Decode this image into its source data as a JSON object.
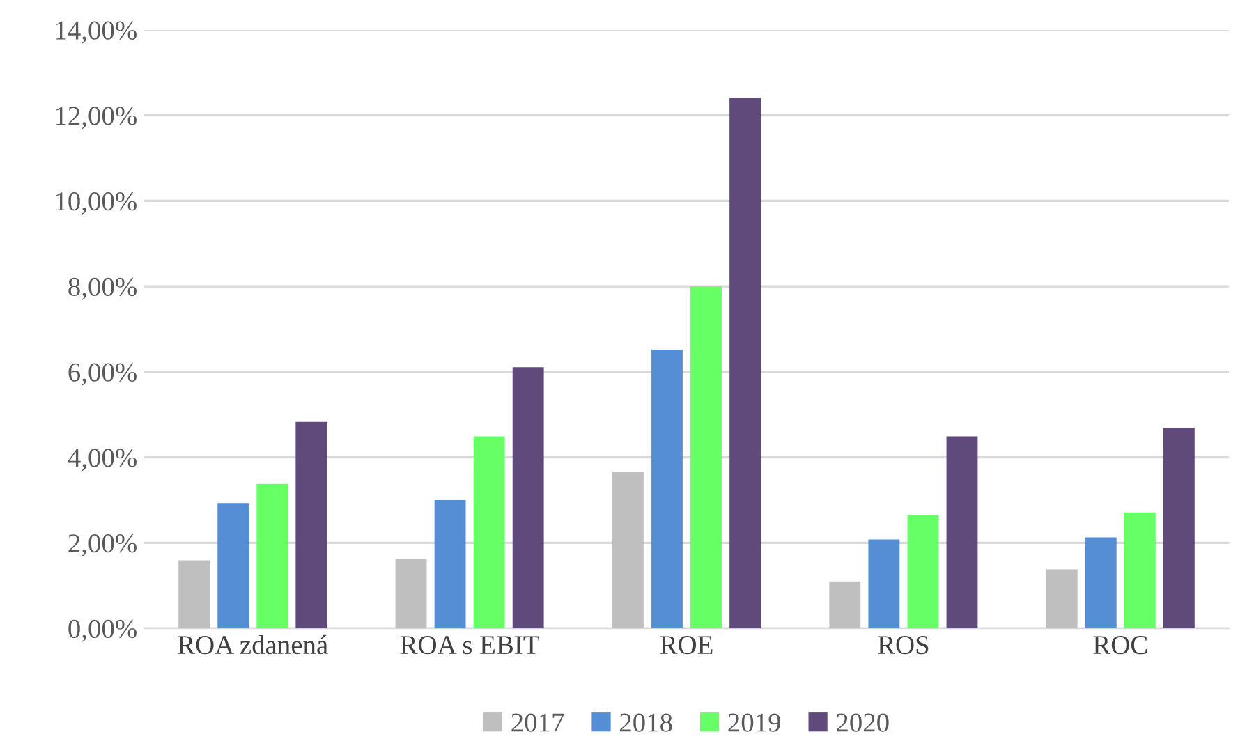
{
  "chart_data": {
    "type": "bar",
    "categories": [
      "ROA zdanená",
      "ROA s EBIT",
      "ROE",
      "ROS",
      "ROC"
    ],
    "series": [
      {
        "name": "2017",
        "color": "#bfbfbf",
        "values": [
          1.59,
          1.63,
          3.66,
          1.1,
          1.38
        ]
      },
      {
        "name": "2018",
        "color": "#558ed5",
        "values": [
          2.93,
          3.0,
          6.52,
          2.08,
          2.13
        ]
      },
      {
        "name": "2019",
        "color": "#66ff66",
        "values": [
          3.38,
          4.49,
          8.0,
          2.65,
          2.71
        ]
      },
      {
        "name": "2020",
        "color": "#604a7b",
        "values": [
          4.83,
          6.11,
          12.41,
          4.49,
          4.69
        ]
      }
    ],
    "ylim": [
      0,
      14
    ],
    "yticks": [
      {
        "value": 0,
        "label": "0,00%"
      },
      {
        "value": 2,
        "label": "2,00%"
      },
      {
        "value": 4,
        "label": "4,00%"
      },
      {
        "value": 6,
        "label": "6,00%"
      },
      {
        "value": 8,
        "label": "8,00%"
      },
      {
        "value": 10,
        "label": "10,00%"
      },
      {
        "value": 12,
        "label": "12,00%"
      },
      {
        "value": 14,
        "label": "14,00%"
      }
    ],
    "grid": "y",
    "legend": "bottom"
  }
}
